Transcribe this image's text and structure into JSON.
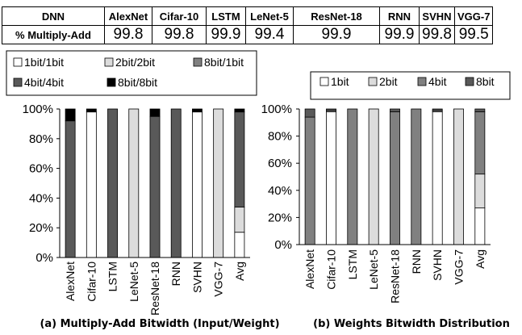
{
  "table": {
    "header_label": "DNN",
    "row_label": "% Multiply-Add",
    "columns": [
      "AlexNet",
      "Cifar-10",
      "LSTM",
      "LeNet-5",
      "ResNet-18",
      "RNN",
      "SVHN",
      "VGG-7"
    ],
    "values": [
      "99.8",
      "99.8",
      "99.9",
      "99.4",
      "99.9",
      "99.9",
      "99.8",
      "99.5"
    ]
  },
  "chart_data": [
    {
      "type": "bar",
      "stacked": true,
      "caption": "(a) Multiply-Add Bitwidth (Input/Weight)",
      "categories": [
        "AlexNet",
        "Cifar-10",
        "LSTM",
        "LeNet-5",
        "ResNet-18",
        "RNN",
        "SVHN",
        "VGG-7",
        "Avg"
      ],
      "yticks": [
        "0%",
        "20%",
        "40%",
        "60%",
        "80%",
        "100%"
      ],
      "ylim": [
        0,
        100
      ],
      "legend_position": "top",
      "series": [
        {
          "name": "1bit/1bit",
          "color": "#ffffff",
          "values": [
            0,
            98,
            0,
            0,
            0,
            0,
            98,
            0,
            17
          ]
        },
        {
          "name": "2bit/2bit",
          "color": "#dcdcdc",
          "values": [
            0,
            0,
            0,
            100,
            0,
            0,
            0,
            100,
            17
          ]
        },
        {
          "name": "8bit/1bit",
          "color": "#808080",
          "values": [
            0,
            0,
            0,
            0,
            0,
            0,
            0,
            0,
            0
          ]
        },
        {
          "name": "4bit/4bit",
          "color": "#595959",
          "values": [
            92,
            0,
            100,
            0,
            95,
            100,
            0,
            0,
            64
          ]
        },
        {
          "name": "8bit/8bit",
          "color": "#000000",
          "values": [
            8,
            2,
            0,
            0,
            5,
            0,
            2,
            0,
            2
          ]
        }
      ]
    },
    {
      "type": "bar",
      "stacked": true,
      "caption": "(b) Weights Bitwidth Distribution",
      "categories": [
        "AlexNet",
        "Cifar-10",
        "LSTM",
        "LeNet-5",
        "ResNet-18",
        "RNN",
        "SVHN",
        "VGG-7",
        "Avg"
      ],
      "yticks": [
        "0%",
        "20%",
        "40%",
        "60%",
        "80%",
        "100%"
      ],
      "ylim": [
        0,
        100
      ],
      "legend_position": "top",
      "series": [
        {
          "name": "1bit",
          "color": "#ffffff",
          "values": [
            0,
            98,
            0,
            0,
            0,
            0,
            98,
            0,
            27
          ]
        },
        {
          "name": "2bit",
          "color": "#dcdcdc",
          "values": [
            0,
            0,
            0,
            100,
            0,
            0,
            0,
            100,
            25
          ]
        },
        {
          "name": "4bit",
          "color": "#808080",
          "values": [
            94,
            1,
            100,
            0,
            98,
            100,
            1,
            0,
            46
          ]
        },
        {
          "name": "8bit",
          "color": "#595959",
          "values": [
            6,
            1,
            0,
            0,
            2,
            0,
            1,
            0,
            2
          ]
        }
      ]
    }
  ]
}
